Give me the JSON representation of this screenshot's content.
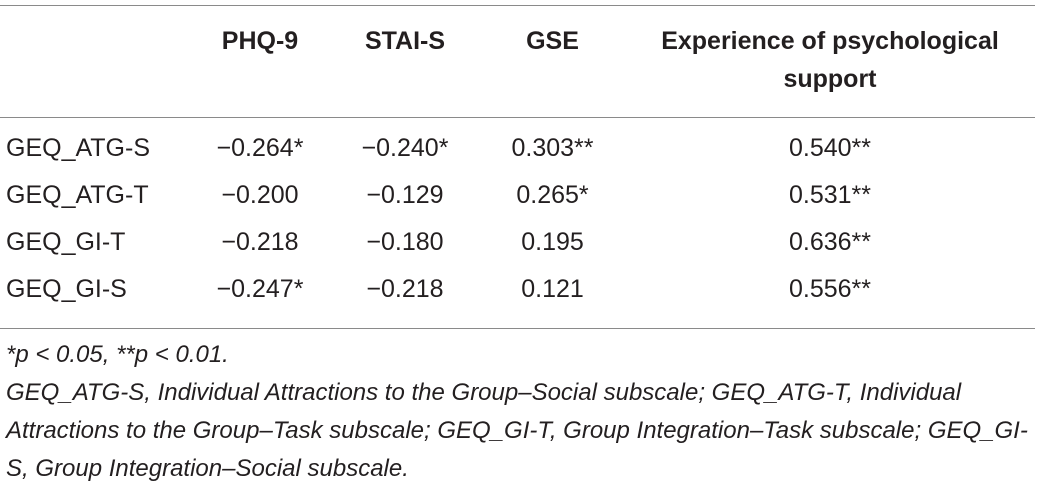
{
  "table": {
    "columns": [
      "",
      "PHQ-9",
      "STAI-S",
      "GSE",
      "Experience of psychological support"
    ],
    "rows": [
      {
        "label": "GEQ_ATG-S",
        "values": [
          "−0.264*",
          "−0.240*",
          "0.303**",
          "0.540**"
        ]
      },
      {
        "label": "GEQ_ATG-T",
        "values": [
          "−0.200",
          "−0.129",
          "0.265*",
          "0.531**"
        ]
      },
      {
        "label": "GEQ_GI-T",
        "values": [
          "−0.218",
          "−0.180",
          "0.195",
          "0.636**"
        ]
      },
      {
        "label": "GEQ_GI-S",
        "values": [
          "−0.247*",
          "−0.218",
          "0.121",
          "0.556**"
        ]
      }
    ]
  },
  "notes": {
    "significance": "*p < 0.05, **p < 0.01.",
    "abbreviations": "GEQ_ATG-S, Individual Attractions to the Group–Social subscale; GEQ_ATG-T, Individual Attractions to the Group–Task subscale; GEQ_GI-T, Group Integration–Task subscale; GEQ_GI-S, Group Integration–Social subscale."
  }
}
